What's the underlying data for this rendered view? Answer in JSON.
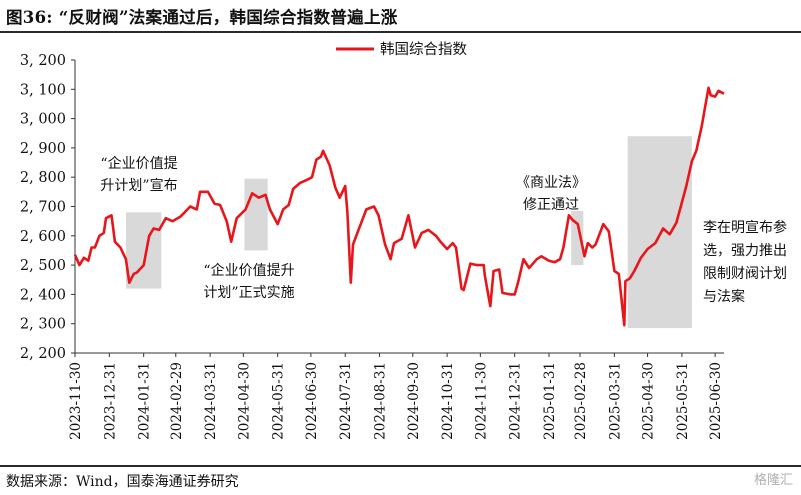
{
  "header": {
    "figure_label": "图36:",
    "title": "“反财阀”法案通过后，韩国综合指数普遍上涨"
  },
  "footer": {
    "source": "数据来源：Wind，国泰海通证券研究",
    "watermark": "格隆汇"
  },
  "colors": {
    "line": "#e8161b",
    "shade": "#d9d9d9",
    "axis": "#333333"
  },
  "chart_data": {
    "type": "line",
    "title": "“反财阀”法案通过后，韩国综合指数普遍上涨",
    "xlabel": "",
    "ylabel": "",
    "ylim": [
      2200,
      3200
    ],
    "yticks": [
      2200,
      2300,
      2400,
      2500,
      2600,
      2700,
      2800,
      2900,
      3000,
      3100,
      3200
    ],
    "ytick_labels": [
      "2, 200",
      "2, 300",
      "2, 400",
      "2, 500",
      "2, 600",
      "2, 700",
      "2, 800",
      "2, 900",
      "3, 000",
      "3, 100",
      "3, 200"
    ],
    "x_start": "2023-11-30",
    "x_end": "2025-07-08",
    "xtick_labels": [
      "2023-11-30",
      "2023-12-31",
      "2024-01-31",
      "2024-02-29",
      "2024-03-31",
      "2024-04-30",
      "2024-05-31",
      "2024-06-30",
      "2024-07-31",
      "2024-08-31",
      "2024-09-30",
      "2024-10-31",
      "2024-11-30",
      "2024-12-31",
      "2025-01-31",
      "2025-02-28",
      "2025-03-31",
      "2025-04-30",
      "2025-05-31",
      "2025-06-30"
    ],
    "legend": {
      "label": "韩国综合指数",
      "position": "top-center"
    },
    "series": [
      {
        "name": "韩国综合指数",
        "points": [
          [
            "2023-11-30",
            2535
          ],
          [
            "2023-12-04",
            2500
          ],
          [
            "2023-12-08",
            2525
          ],
          [
            "2023-12-12",
            2515
          ],
          [
            "2023-12-15",
            2560
          ],
          [
            "2023-12-18",
            2560
          ],
          [
            "2023-12-22",
            2600
          ],
          [
            "2023-12-26",
            2610
          ],
          [
            "2023-12-28",
            2660
          ],
          [
            "2024-01-02",
            2670
          ],
          [
            "2024-01-05",
            2580
          ],
          [
            "2024-01-10",
            2560
          ],
          [
            "2024-01-15",
            2520
          ],
          [
            "2024-01-18",
            2440
          ],
          [
            "2024-01-22",
            2470
          ],
          [
            "2024-01-25",
            2475
          ],
          [
            "2024-01-31",
            2500
          ],
          [
            "2024-02-05",
            2600
          ],
          [
            "2024-02-09",
            2625
          ],
          [
            "2024-02-14",
            2620
          ],
          [
            "2024-02-20",
            2660
          ],
          [
            "2024-02-26",
            2650
          ],
          [
            "2024-03-04",
            2665
          ],
          [
            "2024-03-08",
            2680
          ],
          [
            "2024-03-13",
            2700
          ],
          [
            "2024-03-19",
            2690
          ],
          [
            "2024-03-22",
            2750
          ],
          [
            "2024-03-29",
            2750
          ],
          [
            "2024-04-04",
            2710
          ],
          [
            "2024-04-09",
            2705
          ],
          [
            "2024-04-15",
            2650
          ],
          [
            "2024-04-19",
            2580
          ],
          [
            "2024-04-24",
            2660
          ],
          [
            "2024-05-02",
            2690
          ],
          [
            "2024-05-08",
            2745
          ],
          [
            "2024-05-14",
            2730
          ],
          [
            "2024-05-20",
            2740
          ],
          [
            "2024-05-24",
            2690
          ],
          [
            "2024-05-31",
            2640
          ],
          [
            "2024-06-05",
            2690
          ],
          [
            "2024-06-10",
            2705
          ],
          [
            "2024-06-14",
            2760
          ],
          [
            "2024-06-20",
            2780
          ],
          [
            "2024-06-26",
            2790
          ],
          [
            "2024-07-01",
            2800
          ],
          [
            "2024-07-05",
            2860
          ],
          [
            "2024-07-09",
            2870
          ],
          [
            "2024-07-11",
            2890
          ],
          [
            "2024-07-17",
            2840
          ],
          [
            "2024-07-22",
            2765
          ],
          [
            "2024-07-26",
            2730
          ],
          [
            "2024-07-31",
            2770
          ],
          [
            "2024-08-02",
            2680
          ],
          [
            "2024-08-05",
            2440
          ],
          [
            "2024-08-07",
            2570
          ],
          [
            "2024-08-12",
            2620
          ],
          [
            "2024-08-19",
            2690
          ],
          [
            "2024-08-26",
            2700
          ],
          [
            "2024-08-30",
            2670
          ],
          [
            "2024-09-05",
            2570
          ],
          [
            "2024-09-10",
            2520
          ],
          [
            "2024-09-13",
            2575
          ],
          [
            "2024-09-20",
            2590
          ],
          [
            "2024-09-26",
            2670
          ],
          [
            "2024-10-02",
            2560
          ],
          [
            "2024-10-08",
            2610
          ],
          [
            "2024-10-14",
            2620
          ],
          [
            "2024-10-21",
            2600
          ],
          [
            "2024-10-25",
            2580
          ],
          [
            "2024-10-31",
            2555
          ],
          [
            "2024-11-05",
            2575
          ],
          [
            "2024-11-08",
            2560
          ],
          [
            "2024-11-13",
            2420
          ],
          [
            "2024-11-15",
            2415
          ],
          [
            "2024-11-21",
            2505
          ],
          [
            "2024-11-27",
            2500
          ],
          [
            "2024-12-03",
            2500
          ],
          [
            "2024-12-04",
            2465
          ],
          [
            "2024-12-09",
            2360
          ],
          [
            "2024-12-12",
            2480
          ],
          [
            "2024-12-17",
            2485
          ],
          [
            "2024-12-20",
            2405
          ],
          [
            "2024-12-27",
            2400
          ],
          [
            "2024-12-31",
            2400
          ],
          [
            "2025-01-03",
            2440
          ],
          [
            "2025-01-08",
            2520
          ],
          [
            "2025-01-13",
            2490
          ],
          [
            "2025-01-20",
            2520
          ],
          [
            "2025-01-24",
            2530
          ],
          [
            "2025-01-31",
            2515
          ],
          [
            "2025-02-05",
            2510
          ],
          [
            "2025-02-10",
            2520
          ],
          [
            "2025-02-13",
            2560
          ],
          [
            "2025-02-18",
            2670
          ],
          [
            "2025-02-21",
            2655
          ],
          [
            "2025-02-26",
            2640
          ],
          [
            "2025-03-04",
            2530
          ],
          [
            "2025-03-07",
            2575
          ],
          [
            "2025-03-11",
            2560
          ],
          [
            "2025-03-14",
            2570
          ],
          [
            "2025-03-18",
            2610
          ],
          [
            "2025-03-21",
            2640
          ],
          [
            "2025-03-26",
            2615
          ],
          [
            "2025-03-31",
            2480
          ],
          [
            "2025-04-04",
            2470
          ],
          [
            "2025-04-09",
            2295
          ],
          [
            "2025-04-10",
            2445
          ],
          [
            "2025-04-14",
            2455
          ],
          [
            "2025-04-18",
            2480
          ],
          [
            "2025-04-24",
            2525
          ],
          [
            "2025-04-30",
            2555
          ],
          [
            "2025-05-07",
            2575
          ],
          [
            "2025-05-14",
            2625
          ],
          [
            "2025-05-20",
            2605
          ],
          [
            "2025-05-26",
            2645
          ],
          [
            "2025-05-30",
            2700
          ],
          [
            "2025-06-04",
            2770
          ],
          [
            "2025-06-09",
            2855
          ],
          [
            "2025-06-13",
            2890
          ],
          [
            "2025-06-18",
            2975
          ],
          [
            "2025-06-20",
            3020
          ],
          [
            "2025-06-24",
            3105
          ],
          [
            "2025-06-26",
            3080
          ],
          [
            "2025-06-30",
            3075
          ],
          [
            "2025-07-03",
            3095
          ],
          [
            "2025-07-08",
            3085
          ]
        ]
      }
    ],
    "shaded_regions": [
      {
        "x_start": "2024-01-15",
        "x_end": "2024-02-16",
        "y_start": 2420,
        "y_end": 2680
      },
      {
        "x_start": "2024-05-01",
        "x_end": "2024-05-22",
        "y_start": 2550,
        "y_end": 2795
      },
      {
        "x_start": "2025-02-20",
        "x_end": "2025-03-03",
        "y_start": 2500,
        "y_end": 2685
      },
      {
        "x_start": "2025-04-12",
        "x_end": "2025-06-09",
        "y_start": 2285,
        "y_end": 2940
      }
    ],
    "annotations": [
      {
        "id": "note1",
        "lines": [
          "“企业价值提",
          "升计划”宣布"
        ]
      },
      {
        "id": "note2",
        "lines": [
          "“企业价值提升",
          "计划”正式实施"
        ]
      },
      {
        "id": "note3",
        "lines": [
          "《商业法》",
          "修正通过"
        ]
      },
      {
        "id": "note4",
        "lines": [
          "李在明宣布参",
          "选，强力推出",
          "限制财阀计划",
          "与法案"
        ]
      }
    ]
  }
}
